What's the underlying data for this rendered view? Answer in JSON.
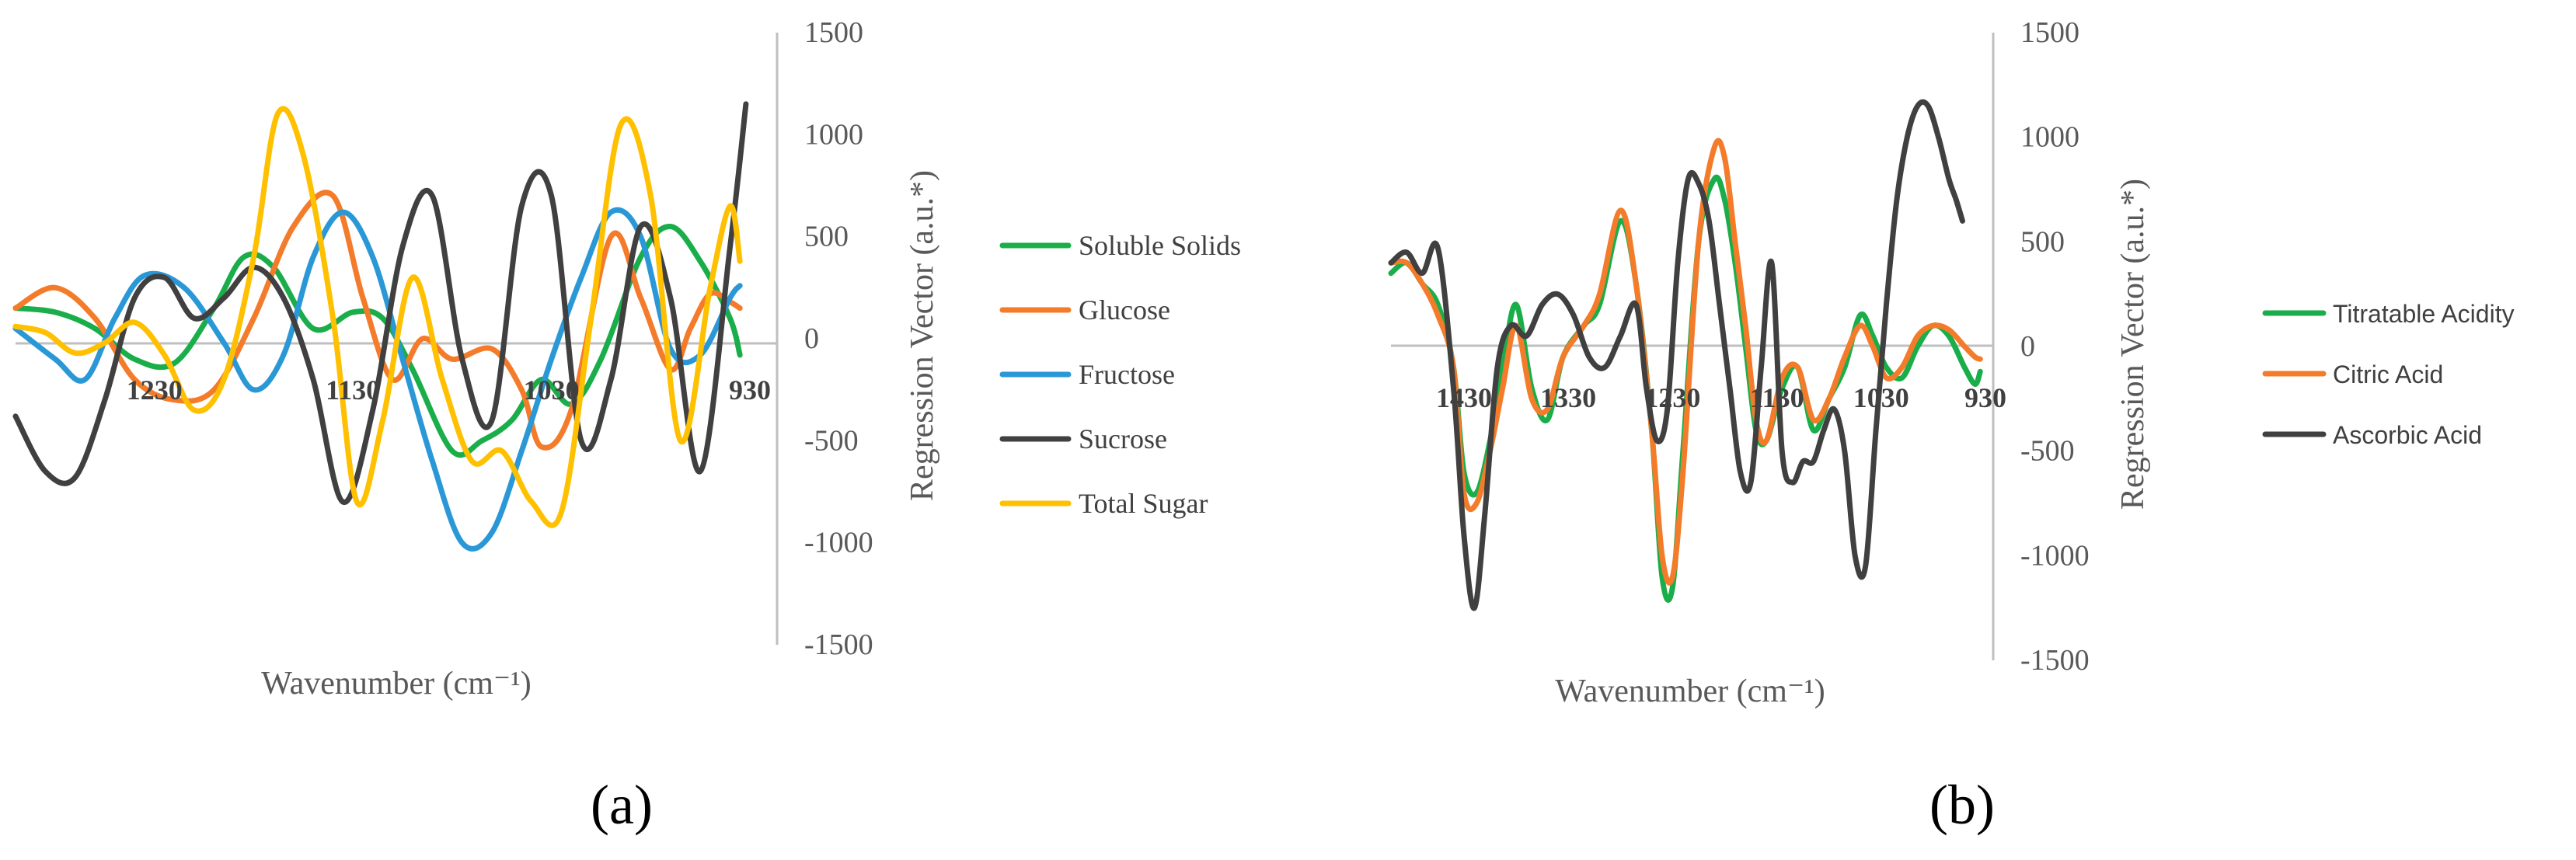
{
  "chart_data": [
    {
      "type": "line",
      "panel_label": "(a)",
      "xlabel": "Wavenumber (cm⁻¹)",
      "ylabel": "Regression Vector (a.u.*)",
      "xlim": [
        1300,
        930
      ],
      "ylim": [
        -1500,
        1500
      ],
      "x_ticks": [
        1230,
        1130,
        1030,
        930
      ],
      "y_ticks": [
        1500,
        1000,
        500,
        0,
        -500,
        -1000,
        -1500
      ],
      "legend_position": "right",
      "series": [
        {
          "name": "Soluble Solids",
          "color": "#1aae4a",
          "x": [
            1300,
            1280,
            1260,
            1240,
            1220,
            1200,
            1185,
            1170,
            1150,
            1130,
            1115,
            1100,
            1080,
            1065,
            1050,
            1035,
            1020,
            1005,
            985,
            970,
            955,
            940,
            935
          ],
          "y": [
            150,
            130,
            50,
            -100,
            -120,
            150,
            400,
            350,
            50,
            130,
            100,
            -150,
            -550,
            -500,
            -400,
            -200,
            -320,
            -100,
            400,
            550,
            380,
            100,
            -80
          ]
        },
        {
          "name": "Glucose",
          "color": "#f47b2a",
          "x": [
            1300,
            1280,
            1260,
            1240,
            1220,
            1200,
            1180,
            1160,
            1140,
            1125,
            1110,
            1095,
            1080,
            1060,
            1045,
            1035,
            1020,
            1000,
            985,
            970,
            960,
            950,
            940,
            935
          ],
          "y": [
            150,
            250,
            100,
            -200,
            -300,
            -250,
            100,
            550,
            700,
            200,
            -200,
            0,
            -100,
            -50,
            -250,
            -530,
            -350,
            500,
            200,
            -150,
            50,
            220,
            180,
            150
          ]
        },
        {
          "name": "Fructose",
          "color": "#2a98d6",
          "x": [
            1300,
            1280,
            1265,
            1250,
            1235,
            1215,
            1195,
            1180,
            1165,
            1150,
            1135,
            1120,
            1105,
            1090,
            1075,
            1060,
            1045,
            1030,
            1015,
            1000,
            985,
            970,
            955,
            940,
            935
          ],
          "y": [
            50,
            -100,
            -200,
            100,
            310,
            250,
            -20,
            -250,
            -80,
            400,
            620,
            400,
            -100,
            -600,
            -1000,
            -950,
            -550,
            -100,
            300,
            620,
            500,
            -50,
            -80,
            200,
            260
          ]
        },
        {
          "name": "Sucrose",
          "color": "#404040",
          "x": [
            1300,
            1285,
            1270,
            1255,
            1240,
            1225,
            1210,
            1195,
            1180,
            1165,
            1150,
            1135,
            1120,
            1105,
            1090,
            1075,
            1060,
            1045,
            1030,
            1015,
            1000,
            985,
            970,
            955,
            940,
            932
          ],
          "y": [
            -380,
            -650,
            -680,
            -300,
            200,
            300,
            100,
            200,
            350,
            200,
            -200,
            -800,
            -350,
            450,
            700,
            -100,
            -400,
            650,
            700,
            -500,
            -200,
            550,
            200,
            -650,
            450,
            1150
          ]
        },
        {
          "name": "Total Sugar",
          "color": "#ffc000",
          "x": [
            1300,
            1285,
            1270,
            1255,
            1240,
            1225,
            1210,
            1195,
            1180,
            1168,
            1155,
            1140,
            1128,
            1115,
            1100,
            1085,
            1070,
            1055,
            1040,
            1025,
            1010,
            995,
            980,
            965,
            950,
            940,
            935
          ],
          "y": [
            60,
            30,
            -70,
            -20,
            80,
            -80,
            -350,
            -200,
            400,
            1100,
            900,
            100,
            -800,
            -400,
            300,
            -200,
            -600,
            -550,
            -800,
            -850,
            100,
            1050,
            700,
            -500,
            250,
            650,
            380
          ]
        }
      ]
    },
    {
      "type": "line",
      "panel_label": "(b)",
      "xlabel": "Wavenumber (cm⁻¹)",
      "ylabel": "Regression Vector (a.u.*)",
      "xlim": [
        1500,
        930
      ],
      "ylim": [
        -1500,
        1500
      ],
      "x_ticks": [
        1430,
        1330,
        1230,
        1130,
        1030,
        930
      ],
      "y_ticks": [
        1500,
        1000,
        500,
        0,
        -500,
        -1000,
        -1500
      ],
      "legend_position": "right",
      "series": [
        {
          "name": "Titratable Acidity",
          "color": "#1aae4a",
          "x": [
            1500,
            1485,
            1470,
            1455,
            1440,
            1430,
            1418,
            1405,
            1393,
            1380,
            1365,
            1350,
            1335,
            1315,
            1300,
            1280,
            1265,
            1250,
            1240,
            1230,
            1220,
            1205,
            1190,
            1180,
            1170,
            1160,
            1150,
            1140,
            1125,
            1110,
            1095,
            1080,
            1065,
            1050,
            1038,
            1025,
            1010,
            995,
            980,
            965,
            950,
            940,
            935
          ],
          "y": [
            350,
            400,
            300,
            200,
            -100,
            -600,
            -700,
            -450,
            -100,
            200,
            -200,
            -350,
            -50,
            100,
            200,
            600,
            300,
            -400,
            -1100,
            -1150,
            -500,
            500,
            800,
            700,
            400,
            0,
            -400,
            -450,
            -200,
            -100,
            -400,
            -250,
            -100,
            150,
            50,
            -100,
            -150,
            0,
            100,
            50,
            -100,
            -180,
            -120
          ]
        },
        {
          "name": "Citric Acid",
          "color": "#f47b2a",
          "x": [
            1500,
            1485,
            1470,
            1455,
            1440,
            1430,
            1418,
            1405,
            1393,
            1380,
            1365,
            1350,
            1335,
            1315,
            1300,
            1280,
            1265,
            1250,
            1240,
            1230,
            1220,
            1205,
            1190,
            1180,
            1170,
            1160,
            1150,
            1140,
            1125,
            1110,
            1095,
            1080,
            1065,
            1050,
            1038,
            1025,
            1010,
            995,
            980,
            965,
            950,
            940,
            935
          ],
          "y": [
            400,
            400,
            300,
            150,
            -100,
            -700,
            -750,
            -500,
            -200,
            100,
            -250,
            -300,
            -50,
            100,
            250,
            650,
            300,
            -400,
            -1000,
            -1100,
            -600,
            500,
            950,
            900,
            500,
            100,
            -350,
            -450,
            -150,
            -100,
            -350,
            -250,
            -50,
            100,
            0,
            -150,
            -100,
            50,
            100,
            80,
            0,
            -50,
            -60
          ]
        },
        {
          "name": "Ascorbic Acid",
          "color": "#404040",
          "x": [
            1500,
            1485,
            1470,
            1455,
            1440,
            1430,
            1420,
            1410,
            1398,
            1385,
            1370,
            1355,
            1340,
            1325,
            1310,
            1295,
            1280,
            1265,
            1255,
            1245,
            1235,
            1225,
            1215,
            1205,
            1195,
            1185,
            1175,
            1165,
            1155,
            1145,
            1135,
            1125,
            1115,
            1105,
            1095,
            1085,
            1075,
            1065,
            1055,
            1045,
            1035,
            1025,
            1015,
            1005,
            995,
            985,
            975,
            965,
            958,
            952
          ],
          "y": [
            400,
            450,
            350,
            470,
            -200,
            -900,
            -1250,
            -800,
            -100,
            100,
            50,
            200,
            250,
            150,
            -50,
            -100,
            50,
            200,
            -200,
            -450,
            -300,
            400,
            800,
            780,
            600,
            200,
            -200,
            -600,
            -650,
            -100,
            400,
            -500,
            -650,
            -550,
            -550,
            -400,
            -300,
            -500,
            -1000,
            -1050,
            -400,
            200,
            700,
            1000,
            1150,
            1150,
            1000,
            800,
            700,
            600
          ]
        }
      ]
    }
  ]
}
